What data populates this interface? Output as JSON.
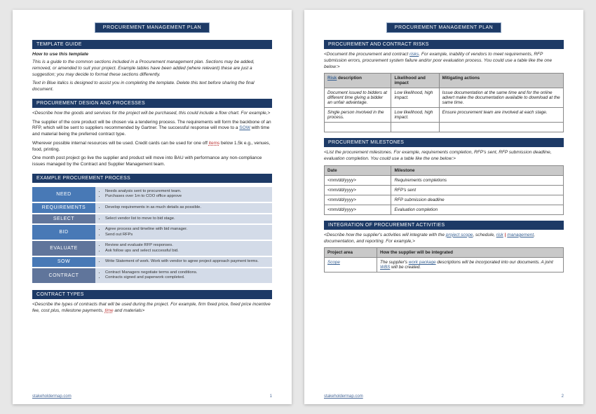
{
  "doc_title": "PROCUREMENT MANAGEMENT PLAN",
  "footer_link": "stakeholdermap.com",
  "page1": {
    "pagenum": "1",
    "section1": {
      "title": "TEMPLATE GUIDE",
      "heading": "How to use this template",
      "p1": "This is a guide to the common sections included in a Procurement management plan. Sections may be added, removed, or amended to suit your project. Example tables have been added (where relevant) these are just a suggestion; you may decide to format these sections differently.",
      "p2": "Text in Blue italics is designed to assist you in completing the template. Delete this text before sharing the final document."
    },
    "section2": {
      "title": "PROCUREMENT DESIGN AND PROCESSES",
      "p1": "<Describe how the goods and services for the project will be purchased, this could include a flow chart. For example,>",
      "p2a": "The supplier of the core product will be chosen via a tendering process. The requirements will form the backbone of an RFP, which will be sent to suppliers recommended by Gartner. The successful response will move to a ",
      "p2link": "SOW",
      "p2b": " with time and material being the preferred contract type.",
      "p3a": "Wherever possible internal resources will be used. Credit cards can be used for one off ",
      "p3link": "items",
      "p3b": " below 1.5k e.g., venues, food, printing.",
      "p4": "One month post project go live the supplier and product will move into BAU with performance any non-compliance issues managed by the Contract and Supplier Management team."
    },
    "section3": {
      "title": "EXAMPLE PROCUREMENT PROCESS",
      "colors": [
        "#4879b6",
        "#4879b6",
        "#60759b",
        "#4879b6",
        "#60759b",
        "#4879b6",
        "#60759b"
      ],
      "steps": [
        {
          "label": "NEED",
          "desc": [
            "Needs analysis sent to procurement team.",
            "Purchases over 1m to COO office approve"
          ]
        },
        {
          "label": "REQUIREMENTS",
          "desc": [
            "Develop requirements in as much details as possible."
          ]
        },
        {
          "label": "SELECT",
          "desc": [
            "Select vendor list to move to bid stage."
          ]
        },
        {
          "label": "BID",
          "desc": [
            "Agree process and timeline with bid manager.",
            "Send out RFPs"
          ]
        },
        {
          "label": "EVALUATE",
          "desc": [
            "Review and evaluate RFP responses.",
            "Ask follow ups and select successful bid."
          ]
        },
        {
          "label": "SOW",
          "desc": [
            "Write Statement of work. Work with vendor to agree project approach payment terms."
          ]
        },
        {
          "label": "CONTRACT",
          "desc": [
            "Contract Managers negotiate terms and conditions.",
            "Contracts signed and paperwork completed."
          ]
        }
      ]
    },
    "section4": {
      "title": "CONTRACT TYPES",
      "p1a": "<Describe the types of contracts that will be used during the project. For example, firm fixed price, fixed price incentive fee, cost plus, milestone payments, ",
      "p1link": "time",
      "p1b": " and materials>"
    }
  },
  "page2": {
    "pagenum": "2",
    "risks": {
      "title": "PROCUREMENT AND CONTRACT RISKS",
      "p1a": "<Document the procurement and contract ",
      "p1link": "risks",
      "p1b": ". For example, inability of vendors to meet requirements, RFP submission errors, procurement system failure and/or poor evaluation process. You could use a table like the one below:>",
      "th": [
        "Risk description",
        "Likelihood and impact",
        "Mitigating actions"
      ],
      "link_in_th": "Risk",
      "rows": [
        [
          "Document issued to bidders at different time giving a bidder an unfair advantage.",
          "Low likelihood, high impact.",
          "Issue documentation at the same time and for the online advert make the documentation available to download at the same time."
        ],
        [
          "Single person involved in the process.",
          "Low likelihood, high impact.",
          "Ensure procurement team are involved at each stage."
        ],
        [
          "",
          "",
          ""
        ]
      ]
    },
    "milestones": {
      "title": "PROCUREMENT MILESTONES",
      "p1": "<List the procurement milestones. For example, requirements completion, RFP's sent, RFP submission deadline, evaluation completion. You could use a table like the one below:>",
      "th": [
        "Date",
        "Milestone"
      ],
      "rows": [
        [
          "<mm/dd/yyyy>",
          "Requirements completions"
        ],
        [
          "<mm/dd/yyyy>",
          "RFP's sent"
        ],
        [
          "<mm/dd/yyyy>",
          "RFP submission deadline"
        ],
        [
          "<mm/dd/yyyy>",
          "Evaluation completion"
        ]
      ]
    },
    "integration": {
      "title": "INTEGRATION OF PROCUREMENT ACTIVITIES",
      "p1a": "<Describe how the supplier's activities will integrate with the ",
      "p1link1": "project scope",
      "p1b": ", schedule, ",
      "p1link2": "risk",
      "p1sep": " | ",
      "p1link3": "management",
      "p1c": ", documentation, and reporting. For example,>",
      "th": [
        "Project area",
        "How the supplier will be integrated"
      ],
      "row": {
        "c1": "Scope",
        "c2a": "The supplier's ",
        "c2link1": "work package",
        "c2b": " descriptions will be incorporated into our documents. A joint ",
        "c2link2": "WBS",
        "c2c": " will be created."
      }
    }
  }
}
